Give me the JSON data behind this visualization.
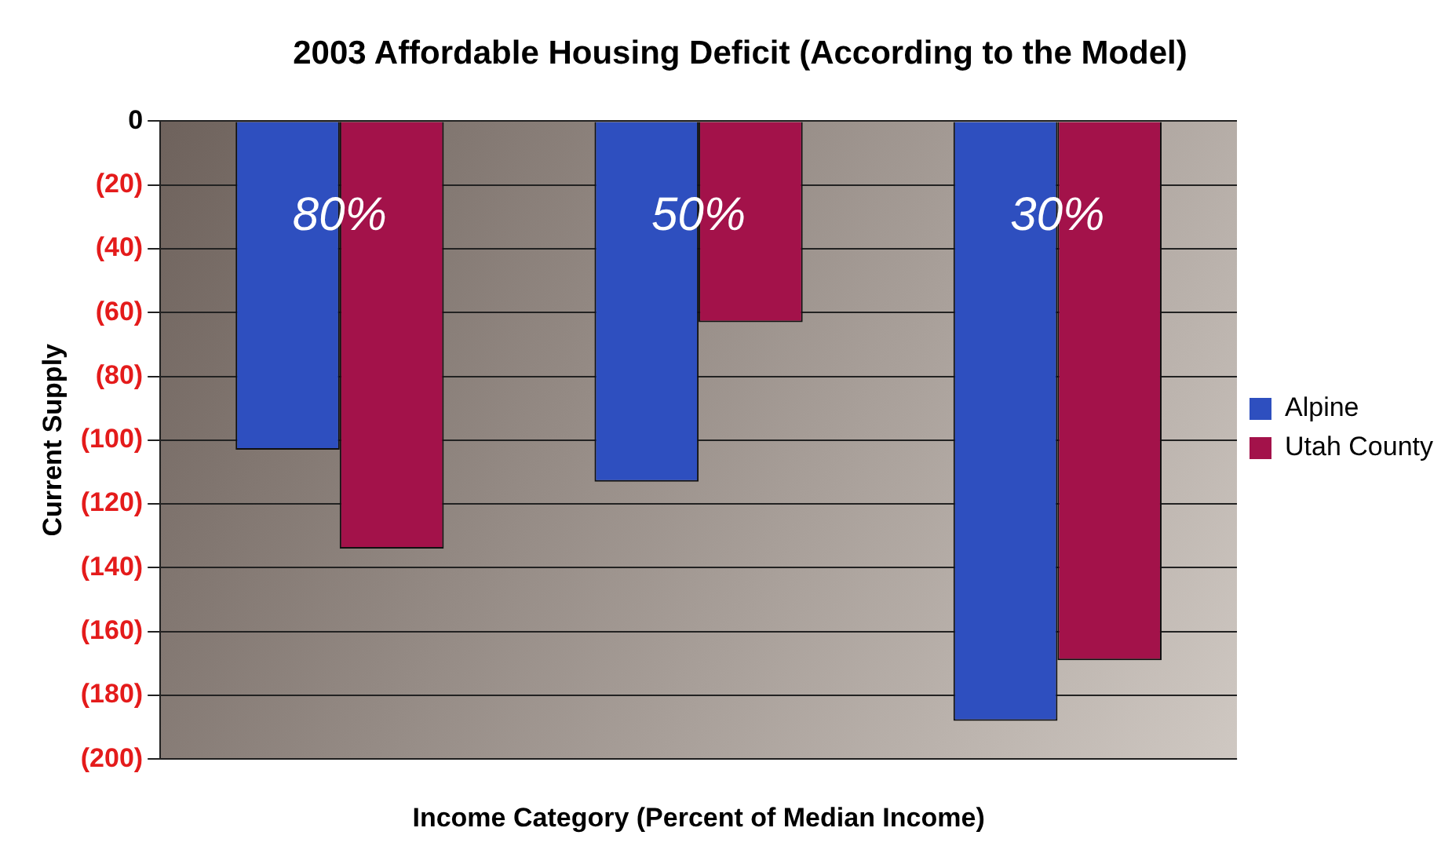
{
  "chart_data": {
    "type": "bar",
    "title": "2003 Affordable Housing Deficit (According to the Model)",
    "xlabel": "Income Category (Percent of Median Income)",
    "ylabel": "Current Supply",
    "categories": [
      "80%",
      "50%",
      "30%"
    ],
    "series": [
      {
        "name": "Alpine",
        "color": "#2e4fbf",
        "values": [
          -103,
          -113,
          -188
        ]
      },
      {
        "name": "Utah County",
        "color": "#a3124a",
        "values": [
          -134,
          -63,
          -169
        ]
      }
    ],
    "ylim": [
      -200,
      0
    ],
    "yticks": [
      {
        "value": -200,
        "label": "(200)"
      },
      {
        "value": -180,
        "label": "(180)"
      },
      {
        "value": -160,
        "label": "(160)"
      },
      {
        "value": -140,
        "label": "(140)"
      },
      {
        "value": -120,
        "label": "(120)"
      },
      {
        "value": -100,
        "label": "(100)"
      },
      {
        "value": -80,
        "label": "(80)"
      },
      {
        "value": -60,
        "label": "(60)"
      },
      {
        "value": -40,
        "label": "(40)"
      },
      {
        "value": -20,
        "label": "(20)"
      },
      0
    ],
    "grid": "y",
    "legend": "right"
  }
}
